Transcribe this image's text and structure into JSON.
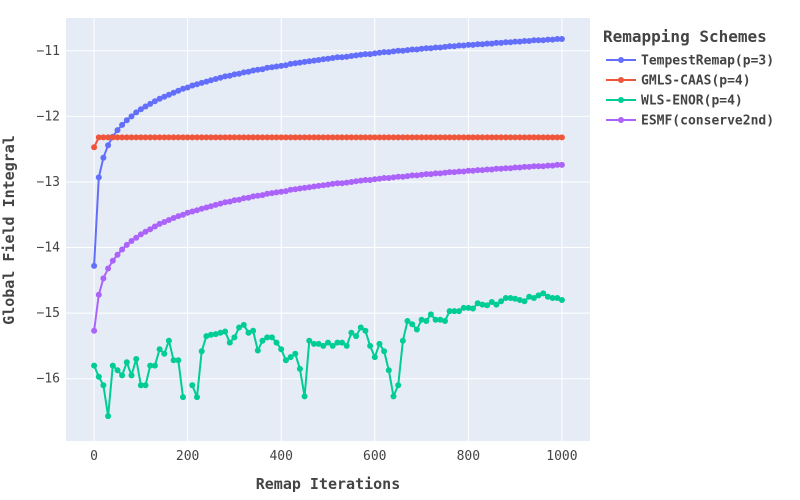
{
  "chart_data": {
    "type": "line",
    "xlabel": "Remap Iterations",
    "ylabel": "Global Field Integral",
    "xlim": [
      -60,
      1060
    ],
    "ylim": [
      -16.95,
      -10.5
    ],
    "xticks": [
      0,
      200,
      400,
      600,
      800,
      1000
    ],
    "yticks": [
      -16,
      -15,
      -14,
      -13,
      -12,
      -11
    ],
    "grid": true,
    "background": "#e5ecf6",
    "legend": {
      "title": "Remapping Schemes",
      "placement": "top-right-outside"
    },
    "x": [
      0,
      10,
      20,
      30,
      40,
      50,
      60,
      70,
      80,
      90,
      100,
      110,
      120,
      130,
      140,
      150,
      160,
      170,
      180,
      190,
      200,
      210,
      220,
      230,
      240,
      250,
      260,
      270,
      280,
      290,
      300,
      310,
      320,
      330,
      340,
      350,
      360,
      370,
      380,
      390,
      400,
      410,
      420,
      430,
      440,
      450,
      460,
      470,
      480,
      490,
      500,
      510,
      520,
      530,
      540,
      550,
      560,
      570,
      580,
      590,
      600,
      610,
      620,
      630,
      640,
      650,
      660,
      670,
      680,
      690,
      700,
      710,
      720,
      730,
      740,
      750,
      760,
      770,
      780,
      790,
      800,
      810,
      820,
      830,
      840,
      850,
      860,
      870,
      880,
      890,
      900,
      910,
      920,
      930,
      940,
      950,
      960,
      970,
      980,
      990,
      1000
    ],
    "series": [
      {
        "name": "TempestRemap(p=3)",
        "color": "#636efa",
        "values": [
          -14.28,
          -12.93,
          -12.63,
          -12.44,
          -12.31,
          -12.21,
          -12.13,
          -12.06,
          -12.0,
          -11.94,
          -11.89,
          -11.85,
          -11.81,
          -11.77,
          -11.73,
          -11.7,
          -11.67,
          -11.64,
          -11.61,
          -11.58,
          -11.56,
          -11.53,
          -11.51,
          -11.49,
          -11.47,
          -11.45,
          -11.43,
          -11.41,
          -11.39,
          -11.38,
          -11.36,
          -11.35,
          -11.33,
          -11.32,
          -11.3,
          -11.29,
          -11.28,
          -11.26,
          -11.25,
          -11.24,
          -11.23,
          -11.22,
          -11.2,
          -11.19,
          -11.18,
          -11.17,
          -11.16,
          -11.15,
          -11.14,
          -11.13,
          -11.12,
          -11.11,
          -11.1,
          -11.1,
          -11.09,
          -11.08,
          -11.07,
          -11.06,
          -11.05,
          -11.05,
          -11.04,
          -11.03,
          -11.02,
          -11.02,
          -11.01,
          -11.0,
          -11.0,
          -10.99,
          -10.98,
          -10.98,
          -10.97,
          -10.96,
          -10.96,
          -10.95,
          -10.95,
          -10.94,
          -10.93,
          -10.93,
          -10.92,
          -10.92,
          -10.91,
          -10.91,
          -10.9,
          -10.9,
          -10.89,
          -10.89,
          -10.88,
          -10.88,
          -10.87,
          -10.87,
          -10.86,
          -10.86,
          -10.85,
          -10.85,
          -10.84,
          -10.84,
          -10.84,
          -10.83,
          -10.83,
          -10.82,
          -10.82
        ]
      },
      {
        "name": "GMLS-CAAS(p=4)",
        "color": "#ef553b",
        "values": [
          -12.47,
          -12.32,
          -12.32,
          -12.32,
          -12.32,
          -12.32,
          -12.32,
          -12.32,
          -12.32,
          -12.32,
          -12.32,
          -12.32,
          -12.32,
          -12.32,
          -12.32,
          -12.32,
          -12.32,
          -12.32,
          -12.32,
          -12.32,
          -12.32,
          -12.32,
          -12.32,
          -12.32,
          -12.32,
          -12.32,
          -12.32,
          -12.32,
          -12.32,
          -12.32,
          -12.32,
          -12.32,
          -12.32,
          -12.32,
          -12.32,
          -12.32,
          -12.32,
          -12.32,
          -12.32,
          -12.32,
          -12.32,
          -12.32,
          -12.32,
          -12.32,
          -12.32,
          -12.32,
          -12.32,
          -12.32,
          -12.32,
          -12.32,
          -12.32,
          -12.32,
          -12.32,
          -12.32,
          -12.32,
          -12.32,
          -12.32,
          -12.32,
          -12.32,
          -12.32,
          -12.32,
          -12.32,
          -12.32,
          -12.32,
          -12.32,
          -12.32,
          -12.32,
          -12.32,
          -12.32,
          -12.32,
          -12.32,
          -12.32,
          -12.32,
          -12.32,
          -12.32,
          -12.32,
          -12.32,
          -12.32,
          -12.32,
          -12.32,
          -12.32,
          -12.32,
          -12.32,
          -12.32,
          -12.32,
          -12.32,
          -12.32,
          -12.32,
          -12.32,
          -12.32,
          -12.32,
          -12.32,
          -12.32,
          -12.32,
          -12.32,
          -12.32,
          -12.32,
          -12.32,
          -12.32,
          -12.32,
          -12.32
        ]
      },
      {
        "name": "WLS-ENOR(p=4)",
        "color": "#00cc96",
        "values": [
          -15.8,
          -15.97,
          -16.1,
          -16.57,
          -15.8,
          -15.87,
          -15.95,
          -15.75,
          -15.95,
          -15.7,
          -16.1,
          -16.1,
          -15.8,
          -15.8,
          -15.55,
          -15.62,
          -15.42,
          -15.72,
          -15.72,
          -16.28,
          null,
          -16.1,
          -16.28,
          -15.58,
          -15.35,
          -15.33,
          -15.32,
          -15.3,
          -15.28,
          -15.45,
          -15.37,
          -15.22,
          -15.18,
          -15.3,
          -15.27,
          -15.57,
          -15.42,
          -15.37,
          -15.37,
          -15.45,
          -15.55,
          -15.72,
          -15.67,
          -15.62,
          -15.85,
          -16.27,
          -15.42,
          -15.47,
          -15.47,
          -15.5,
          -15.45,
          -15.5,
          -15.45,
          -15.45,
          -15.5,
          -15.3,
          -15.35,
          -15.22,
          -15.27,
          -15.5,
          -15.67,
          -15.47,
          -15.58,
          -15.87,
          -16.27,
          -16.1,
          -15.42,
          -15.12,
          -15.17,
          -15.25,
          -15.1,
          -15.12,
          -15.02,
          -15.1,
          -15.1,
          -15.12,
          -14.97,
          -14.97,
          -14.97,
          -14.92,
          -14.92,
          -14.93,
          -14.85,
          -14.87,
          -14.88,
          -14.83,
          -14.87,
          -14.82,
          -14.77,
          -14.77,
          -14.78,
          -14.8,
          -14.82,
          -14.75,
          -14.77,
          -14.73,
          -14.7,
          -14.75,
          -14.77,
          -14.77,
          -14.8
        ]
      },
      {
        "name": "ESMF(conserve2nd)",
        "color": "#ab63fa",
        "values": [
          -15.27,
          -14.72,
          -14.47,
          -14.32,
          -14.2,
          -14.11,
          -14.03,
          -13.96,
          -13.9,
          -13.85,
          -13.8,
          -13.76,
          -13.72,
          -13.68,
          -13.64,
          -13.61,
          -13.58,
          -13.55,
          -13.52,
          -13.5,
          -13.47,
          -13.45,
          -13.43,
          -13.41,
          -13.39,
          -13.37,
          -13.35,
          -13.33,
          -13.31,
          -13.3,
          -13.28,
          -13.27,
          -13.25,
          -13.24,
          -13.22,
          -13.21,
          -13.2,
          -13.18,
          -13.17,
          -13.16,
          -13.15,
          -13.14,
          -13.12,
          -13.11,
          -13.1,
          -13.09,
          -13.08,
          -13.07,
          -13.06,
          -13.05,
          -13.04,
          -13.03,
          -13.02,
          -13.02,
          -13.01,
          -13.0,
          -12.99,
          -12.98,
          -12.97,
          -12.97,
          -12.96,
          -12.95,
          -12.94,
          -12.94,
          -12.93,
          -12.92,
          -12.92,
          -12.91,
          -12.9,
          -12.9,
          -12.89,
          -12.88,
          -12.88,
          -12.87,
          -12.87,
          -12.86,
          -12.85,
          -12.85,
          -12.84,
          -12.84,
          -12.83,
          -12.83,
          -12.82,
          -12.82,
          -12.81,
          -12.81,
          -12.8,
          -12.8,
          -12.79,
          -12.79,
          -12.78,
          -12.78,
          -12.77,
          -12.77,
          -12.76,
          -12.76,
          -12.76,
          -12.75,
          -12.75,
          -12.74,
          -12.74
        ]
      }
    ]
  }
}
